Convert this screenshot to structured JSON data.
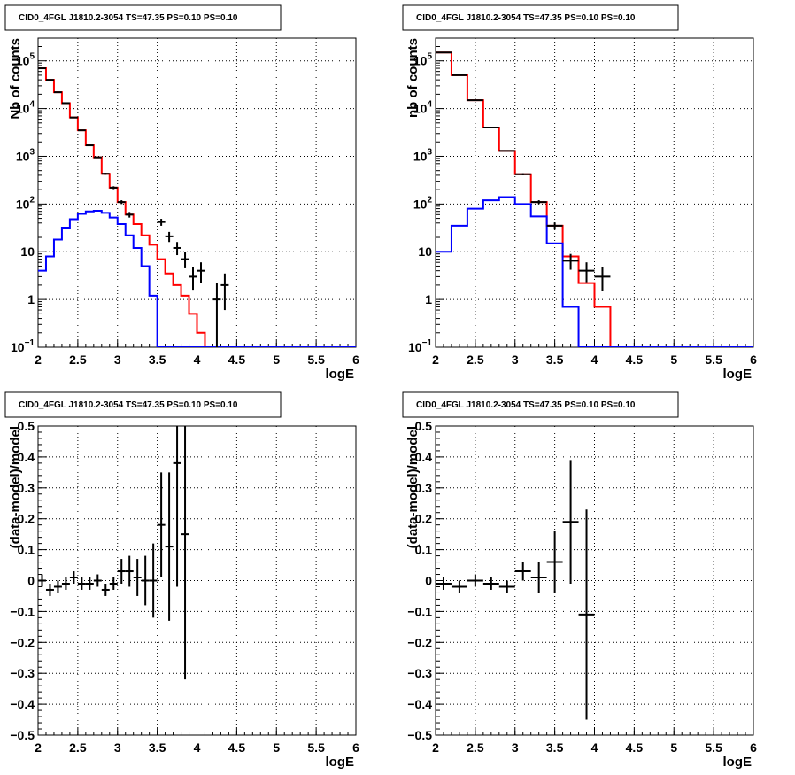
{
  "chart_data": [
    {
      "type": "line",
      "title": "CID0_4FGL J1810.2-3054 TS=47.35 PS=0.10 PS=0.10",
      "xlabel": "logE",
      "ylabel": "Nb of counts",
      "xlim": [
        2,
        6
      ],
      "ylim": [
        0.1,
        300000
      ],
      "yscale": "log",
      "grid": true,
      "x_ticks": [
        "2",
        "2.5",
        "3",
        "3.5",
        "4",
        "4.5",
        "5",
        "5.5",
        "6"
      ],
      "y_ticks": [
        {
          "value": 0.1,
          "label": "10",
          "sup": "−1"
        },
        {
          "value": 1,
          "label": "1",
          "sup": ""
        },
        {
          "value": 10,
          "label": "10",
          "sup": ""
        },
        {
          "value": 100,
          "label": "10",
          "sup": "2"
        },
        {
          "value": 1000,
          "label": "10",
          "sup": "3"
        },
        {
          "value": 10000,
          "label": "10",
          "sup": "4"
        },
        {
          "value": 100000,
          "label": "10",
          "sup": "5"
        }
      ],
      "bin_edges": [
        2.0,
        2.1,
        2.2,
        2.3,
        2.4,
        2.5,
        2.6,
        2.7,
        2.8,
        2.9,
        3.0,
        3.1,
        3.2,
        3.3,
        3.4,
        3.5,
        3.6,
        3.7,
        3.8,
        3.9,
        4.0,
        4.1,
        4.2,
        4.3,
        4.4,
        4.5,
        4.6,
        4.7,
        4.8,
        4.9,
        5.0,
        5.1,
        5.2,
        5.3,
        5.4,
        5.5,
        5.6,
        5.7,
        5.8,
        5.9,
        6.0
      ],
      "series": [
        {
          "color": "#ff0000",
          "style": "step",
          "values": [
            70000,
            40000,
            22000,
            13000,
            6500,
            3500,
            1700,
            950,
            430,
            220,
            110,
            60,
            38,
            22,
            14,
            7,
            3.5,
            2,
            1.2,
            0.5,
            0.2,
            0.1,
            0.1,
            0.1,
            0.1,
            0.1,
            0.1,
            0.1,
            0.1,
            0.1,
            0.1,
            0.1,
            0.1,
            0.1,
            0.1,
            0.1,
            0.1,
            0.1,
            0.1,
            0.1
          ]
        },
        {
          "color": "#0000ff",
          "style": "step",
          "values": [
            4,
            8,
            18,
            32,
            48,
            62,
            70,
            72,
            65,
            52,
            38,
            22,
            12,
            5,
            1.2,
            0.1,
            0.1,
            0.1,
            0.1,
            0.1,
            0.1,
            0.1,
            0.1,
            0.1,
            0.1,
            0.1,
            0.1,
            0.1,
            0.1,
            0.1,
            0.1,
            0.1,
            0.1,
            0.1,
            0.1,
            0.1,
            0.1,
            0.1,
            0.1,
            0.1
          ]
        },
        {
          "color": "#000000",
          "style": "errorbar",
          "points": [
            {
              "x": 2.05,
              "y": 70000,
              "lo": 69500,
              "hi": 70500
            },
            {
              "x": 2.15,
              "y": 40000,
              "lo": 39600,
              "hi": 40400
            },
            {
              "x": 2.25,
              "y": 22000,
              "lo": 21700,
              "hi": 22300
            },
            {
              "x": 2.35,
              "y": 13000,
              "lo": 12800,
              "hi": 13200
            },
            {
              "x": 2.45,
              "y": 6500,
              "lo": 6400,
              "hi": 6600
            },
            {
              "x": 2.55,
              "y": 3500,
              "lo": 3440,
              "hi": 3560
            },
            {
              "x": 2.65,
              "y": 1700,
              "lo": 1660,
              "hi": 1740
            },
            {
              "x": 2.75,
              "y": 950,
              "lo": 920,
              "hi": 980
            },
            {
              "x": 2.85,
              "y": 430,
              "lo": 410,
              "hi": 450
            },
            {
              "x": 2.95,
              "y": 220,
              "lo": 205,
              "hi": 235
            },
            {
              "x": 3.05,
              "y": 110,
              "lo": 100,
              "hi": 120
            },
            {
              "x": 3.15,
              "y": 60,
              "lo": 52,
              "hi": 68
            },
            {
              "x": 3.55,
              "y": 42,
              "lo": 35,
              "hi": 49
            },
            {
              "x": 3.65,
              "y": 21,
              "lo": 16,
              "hi": 26
            },
            {
              "x": 3.75,
              "y": 12,
              "lo": 8.5,
              "hi": 16
            },
            {
              "x": 3.85,
              "y": 7,
              "lo": 4.5,
              "hi": 10
            },
            {
              "x": 3.95,
              "y": 3,
              "lo": 1.6,
              "hi": 4.8
            },
            {
              "x": 4.05,
              "y": 4,
              "lo": 2.2,
              "hi": 6
            },
            {
              "x": 4.25,
              "y": 1,
              "lo": 0.1,
              "hi": 2.2
            },
            {
              "x": 4.35,
              "y": 2,
              "lo": 0.6,
              "hi": 3.5
            }
          ]
        }
      ]
    },
    {
      "type": "line",
      "title": "CID0_4FGL J1810.2-3054 TS=47.35 PS=0.10 PS=0.10",
      "xlabel": "logE",
      "ylabel": "nb of counts",
      "xlim": [
        2,
        6
      ],
      "ylim": [
        0.1,
        300000
      ],
      "yscale": "log",
      "grid": true,
      "x_ticks": [
        "2",
        "2.5",
        "3",
        "3.5",
        "4",
        "4.5",
        "5",
        "5.5",
        "6"
      ],
      "y_ticks": [
        {
          "value": 0.1,
          "label": "10",
          "sup": "−1"
        },
        {
          "value": 1,
          "label": "1",
          "sup": ""
        },
        {
          "value": 10,
          "label": "10",
          "sup": ""
        },
        {
          "value": 100,
          "label": "10",
          "sup": "2"
        },
        {
          "value": 1000,
          "label": "10",
          "sup": "3"
        },
        {
          "value": 10000,
          "label": "10",
          "sup": "4"
        },
        {
          "value": 100000,
          "label": "10",
          "sup": "5"
        }
      ],
      "bin_edges": [
        2.0,
        2.2,
        2.4,
        2.6,
        2.8,
        3.0,
        3.2,
        3.4,
        3.6,
        3.8,
        4.0,
        4.2,
        4.4,
        4.6,
        4.8,
        5.0,
        5.2,
        5.4,
        5.6,
        5.8,
        6.0
      ],
      "series": [
        {
          "color": "#ff0000",
          "style": "step",
          "values": [
            150000,
            50000,
            15000,
            4000,
            1300,
            420,
            110,
            35,
            8,
            2.2,
            0.7,
            0.1,
            0.1,
            0.1,
            0.1,
            0.1,
            0.1,
            0.1,
            0.1,
            0.1
          ]
        },
        {
          "color": "#0000ff",
          "style": "step",
          "values": [
            10,
            35,
            80,
            120,
            140,
            100,
            55,
            15,
            0.7,
            0.1,
            0.1,
            0.1,
            0.1,
            0.1,
            0.1,
            0.1,
            0.1,
            0.1,
            0.1,
            0.1
          ]
        },
        {
          "color": "#000000",
          "style": "errorbar",
          "points": [
            {
              "x": 2.1,
              "y": 150000,
              "lo": 149000,
              "hi": 151000
            },
            {
              "x": 2.3,
              "y": 50000,
              "lo": 49600,
              "hi": 50400
            },
            {
              "x": 2.5,
              "y": 15000,
              "lo": 14800,
              "hi": 15200
            },
            {
              "x": 2.7,
              "y": 4000,
              "lo": 3900,
              "hi": 4100
            },
            {
              "x": 2.9,
              "y": 1300,
              "lo": 1260,
              "hi": 1340
            },
            {
              "x": 3.1,
              "y": 420,
              "lo": 400,
              "hi": 440
            },
            {
              "x": 3.3,
              "y": 110,
              "lo": 100,
              "hi": 120
            },
            {
              "x": 3.5,
              "y": 35,
              "lo": 29,
              "hi": 41
            },
            {
              "x": 3.7,
              "y": 6.5,
              "lo": 4.2,
              "hi": 9
            },
            {
              "x": 3.9,
              "y": 4,
              "lo": 2.3,
              "hi": 6
            },
            {
              "x": 4.1,
              "y": 3,
              "lo": 1.5,
              "hi": 4.8
            }
          ]
        }
      ]
    },
    {
      "type": "scatter",
      "title": "CID0_4FGL J1810.2-3054 TS=47.35 PS=0.10 PS=0.10",
      "xlabel": "logE",
      "ylabel": "(data-model)/model",
      "xlim": [
        2,
        6
      ],
      "ylim": [
        -0.5,
        0.5
      ],
      "grid": true,
      "x_ticks": [
        "2",
        "2.5",
        "3",
        "3.5",
        "4",
        "4.5",
        "5",
        "5.5",
        "6"
      ],
      "y_ticks": [
        "−0.5",
        "−0.4",
        "−0.3",
        "−0.2",
        "−0.1",
        "0",
        "0.1",
        "0.2",
        "0.3",
        "0.4",
        "0.5"
      ],
      "points": [
        {
          "x": 2.05,
          "y": 0.0,
          "err": 0.02
        },
        {
          "x": 2.15,
          "y": -0.03,
          "err": 0.02
        },
        {
          "x": 2.25,
          "y": -0.02,
          "err": 0.02
        },
        {
          "x": 2.35,
          "y": -0.01,
          "err": 0.02
        },
        {
          "x": 2.45,
          "y": 0.01,
          "err": 0.02
        },
        {
          "x": 2.55,
          "y": -0.01,
          "err": 0.02
        },
        {
          "x": 2.65,
          "y": -0.01,
          "err": 0.02
        },
        {
          "x": 2.75,
          "y": 0.0,
          "err": 0.02
        },
        {
          "x": 2.85,
          "y": -0.03,
          "err": 0.02
        },
        {
          "x": 2.95,
          "y": -0.01,
          "err": 0.02
        },
        {
          "x": 3.05,
          "y": 0.03,
          "err": 0.04
        },
        {
          "x": 3.15,
          "y": 0.03,
          "err": 0.05
        },
        {
          "x": 3.25,
          "y": 0.01,
          "err": 0.06
        },
        {
          "x": 3.35,
          "y": 0.0,
          "err": 0.08
        },
        {
          "x": 3.45,
          "y": 0.0,
          "err": 0.12
        },
        {
          "x": 3.55,
          "y": 0.18,
          "err": 0.17
        },
        {
          "x": 3.65,
          "y": 0.11,
          "err": 0.24
        },
        {
          "x": 3.75,
          "y": 0.38,
          "err": 0.4
        },
        {
          "x": 3.85,
          "y": 0.15,
          "err": 0.47
        }
      ]
    },
    {
      "type": "scatter",
      "title": "CID0_4FGL J1810.2-3054 TS=47.35 PS=0.10 PS=0.10",
      "xlabel": "logE",
      "ylabel": "(data-model)/model",
      "xlim": [
        2,
        6
      ],
      "ylim": [
        -0.5,
        0.5
      ],
      "grid": true,
      "x_ticks": [
        "2",
        "2.5",
        "3",
        "3.5",
        "4",
        "4.5",
        "5",
        "5.5",
        "6"
      ],
      "y_ticks": [
        "−0.5",
        "−0.4",
        "−0.3",
        "−0.2",
        "−0.1",
        "0",
        "0.1",
        "0.2",
        "0.3",
        "0.4",
        "0.5"
      ],
      "points": [
        {
          "x": 2.1,
          "y": -0.01,
          "err": 0.02
        },
        {
          "x": 2.3,
          "y": -0.02,
          "err": 0.02
        },
        {
          "x": 2.5,
          "y": 0.0,
          "err": 0.02
        },
        {
          "x": 2.7,
          "y": -0.01,
          "err": 0.02
        },
        {
          "x": 2.9,
          "y": -0.02,
          "err": 0.02
        },
        {
          "x": 3.1,
          "y": 0.03,
          "err": 0.03
        },
        {
          "x": 3.3,
          "y": 0.01,
          "err": 0.05
        },
        {
          "x": 3.5,
          "y": 0.06,
          "err": 0.1
        },
        {
          "x": 3.7,
          "y": 0.19,
          "err": 0.2
        },
        {
          "x": 3.9,
          "y": -0.11,
          "err": 0.34
        }
      ]
    }
  ]
}
